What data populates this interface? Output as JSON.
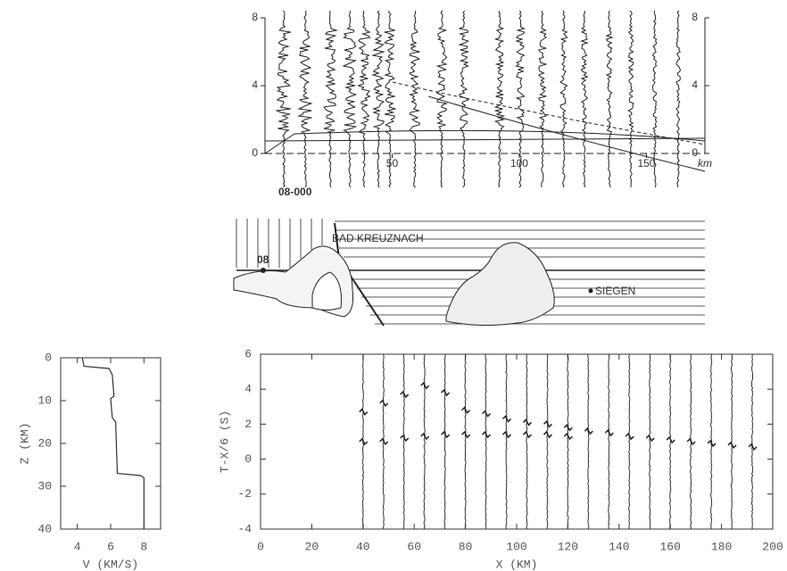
{
  "chart_data": [
    {
      "type": "seismogram",
      "x_label": "km",
      "xlim": [
        0,
        173
      ],
      "xticks": [
        50,
        100,
        150
      ],
      "ylim": [
        0,
        8
      ],
      "yticks": [
        0,
        4,
        8
      ],
      "x": [
        7.4,
        15.8,
        25.6,
        33.3,
        38.9,
        44.6,
        49.1,
        58.9,
        69.5,
        78.2,
        92.3,
        100.4,
        109.1,
        117.5,
        125.6,
        135.4,
        143.9,
        153.3,
        162.5
      ]
    },
    {
      "type": "line",
      "x_label": "V (KM/S)",
      "y_label": "Z (KM)",
      "xlim": [
        3,
        9
      ],
      "xticks": [
        4,
        6,
        8
      ],
      "ylim": [
        0,
        40
      ],
      "yticks": [
        0,
        10,
        20,
        30,
        40
      ],
      "y_reversed": true,
      "color": "#333333",
      "x": [
        4.3,
        4.4,
        5.9,
        6.1,
        6.2,
        6.0,
        6.1,
        6.3,
        6.4,
        7.8,
        8.0,
        8.0
      ],
      "values": [
        0,
        2,
        2.5,
        4,
        9,
        9.5,
        14,
        15,
        27,
        27.5,
        28,
        40
      ]
    },
    {
      "type": "record_section",
      "x_label": "X (KM)",
      "y_label": "T-X/6 (S)",
      "xlim": [
        0,
        200
      ],
      "xticks": [
        0,
        20,
        40,
        60,
        80,
        100,
        120,
        140,
        160,
        180,
        200
      ],
      "ylim": [
        -4,
        6
      ],
      "yticks": [
        -4,
        -2,
        0,
        2,
        4,
        6
      ],
      "x": [
        40,
        48,
        56,
        64,
        72,
        80,
        88,
        96,
        104,
        112,
        120,
        128,
        136,
        144,
        152,
        160,
        168,
        176,
        184,
        192
      ],
      "series": [
        {
          "color": "#222222",
          "values": [
            2.7,
            3.2,
            3.7,
            4.2,
            3.8,
            2.8,
            2.6,
            2.3,
            2.1,
            2.0,
            1.8,
            1.6,
            1.5,
            1.3,
            1.2,
            1.1,
            1.0,
            0.9,
            0.8,
            0.7
          ]
        },
        {
          "color": "#222222",
          "values": [
            1.0,
            1.0,
            1.2,
            1.3,
            1.4,
            1.4,
            1.4,
            1.4,
            1.4,
            1.4,
            1.3,
            null,
            null,
            null,
            null,
            null,
            null,
            null,
            null,
            null
          ]
        }
      ]
    }
  ],
  "map": {
    "profile": "08-000",
    "shot": "08",
    "town_1": "BAD KREUZNACH",
    "town_2": "SIEGEN"
  }
}
